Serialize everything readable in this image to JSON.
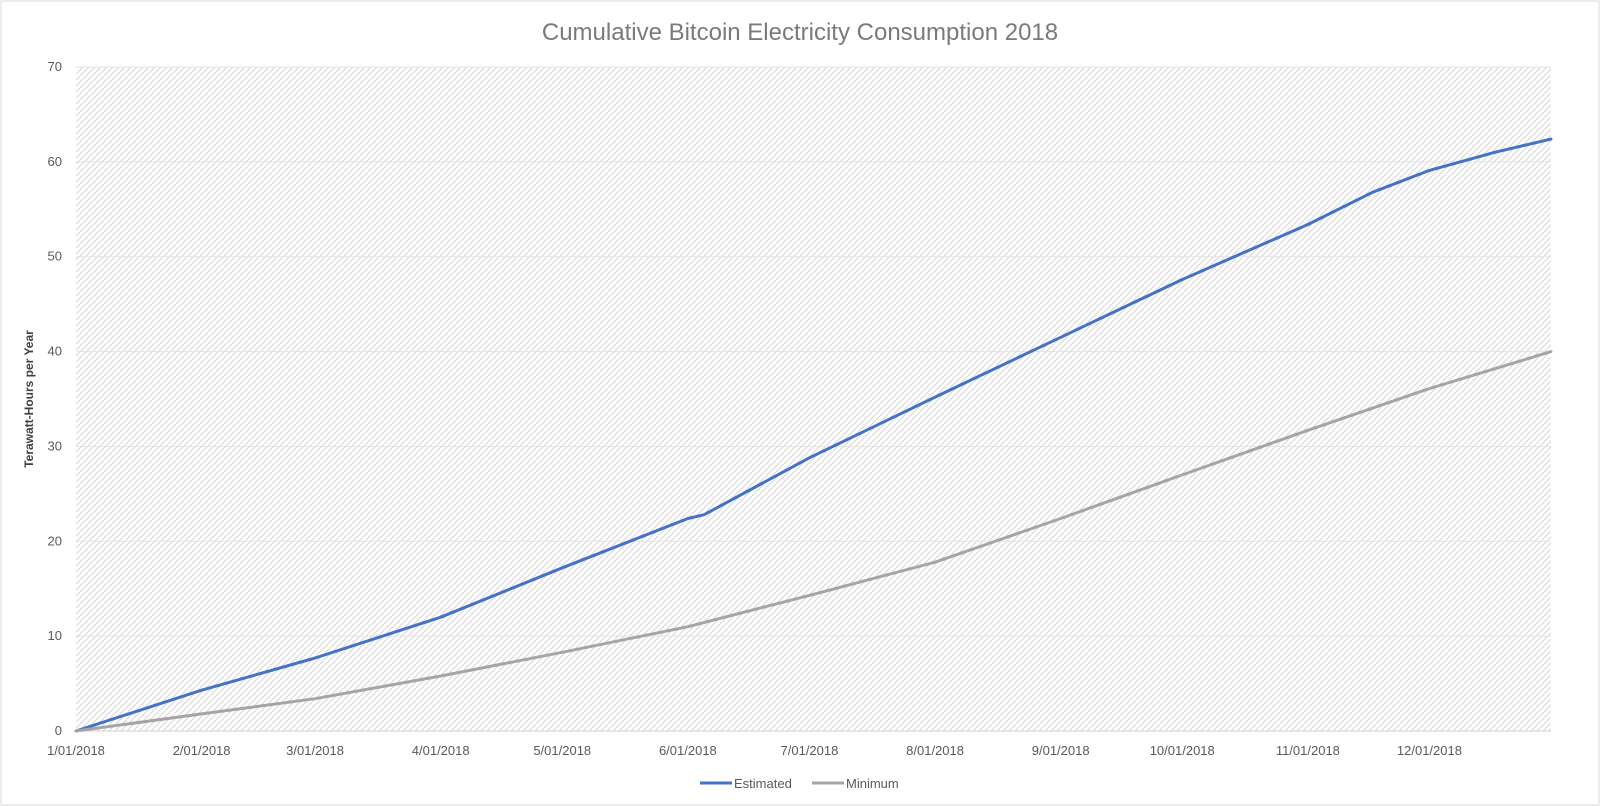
{
  "chart_data": {
    "type": "line",
    "title": "Cumulative Bitcoin Electricity Consumption 2018",
    "xlabel": "",
    "ylabel": "Terawatt-Hours per Year",
    "ylim": [
      0,
      70
    ],
    "y_ticks": [
      0,
      10,
      20,
      30,
      40,
      50,
      60,
      70
    ],
    "x_domain": [
      0,
      364
    ],
    "x_ticks": [
      {
        "day": 0,
        "label": "1/01/2018"
      },
      {
        "day": 31,
        "label": "2/01/2018"
      },
      {
        "day": 59,
        "label": "3/01/2018"
      },
      {
        "day": 90,
        "label": "4/01/2018"
      },
      {
        "day": 120,
        "label": "5/01/2018"
      },
      {
        "day": 151,
        "label": "6/01/2018"
      },
      {
        "day": 181,
        "label": "7/01/2018"
      },
      {
        "day": 212,
        "label": "8/01/2018"
      },
      {
        "day": 243,
        "label": "9/01/2018"
      },
      {
        "day": 273,
        "label": "10/01/2018"
      },
      {
        "day": 304,
        "label": "11/01/2018"
      },
      {
        "day": 334,
        "label": "12/01/2018"
      }
    ],
    "grid": true,
    "legend_position": "bottom",
    "series": [
      {
        "name": "Estimated",
        "color": "#4472c4",
        "x": [
          0,
          31,
          59,
          90,
          120,
          151,
          155,
          181,
          212,
          243,
          273,
          304,
          320,
          334,
          350,
          364
        ],
        "values": [
          0,
          4.3,
          7.7,
          12.0,
          17.2,
          22.4,
          22.8,
          28.8,
          35.2,
          41.5,
          47.6,
          53.4,
          56.8,
          59.1,
          61.0,
          62.4
        ]
      },
      {
        "name": "Minimum",
        "color": "#a5a5a5",
        "x": [
          0,
          31,
          59,
          90,
          120,
          151,
          181,
          212,
          243,
          273,
          304,
          334,
          364
        ],
        "values": [
          0,
          1.8,
          3.4,
          5.8,
          8.3,
          11.0,
          14.3,
          17.8,
          22.4,
          27.0,
          31.7,
          36.1,
          40.0
        ]
      }
    ]
  }
}
